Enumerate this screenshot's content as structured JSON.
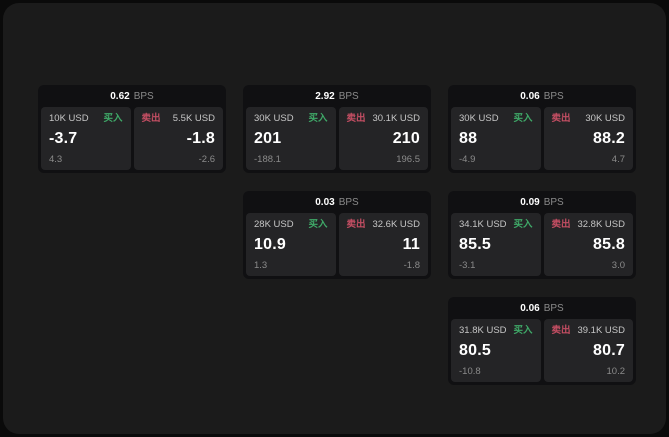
{
  "labels": {
    "bps": "BPS",
    "buy": "买入",
    "sell": "卖出"
  },
  "colors": {
    "page_bg": "#0a0a0a",
    "panel_bg": "#1b1b1b",
    "card_bg": "#101012",
    "tile_bg": "#242426",
    "buy_green": "#3fa968",
    "sell_red": "#c44e63",
    "text_primary": "#ffffff",
    "text_secondary": "#c6c6c6",
    "text_muted": "#8b8b8b"
  },
  "cards": [
    {
      "bps": "0.62",
      "buy": {
        "amount": "10K USD",
        "price": "-3.7",
        "delta": "4.3"
      },
      "sell": {
        "amount": "5.5K USD",
        "price": "-1.8",
        "delta": "-2.6"
      }
    },
    {
      "bps": "2.92",
      "buy": {
        "amount": "30K USD",
        "price": "201",
        "delta": "-188.1"
      },
      "sell": {
        "amount": "30.1K USD",
        "price": "210",
        "delta": "196.5"
      }
    },
    {
      "bps": "0.06",
      "buy": {
        "amount": "30K USD",
        "price": "88",
        "delta": "-4.9"
      },
      "sell": {
        "amount": "30K USD",
        "price": "88.2",
        "delta": "4.7"
      }
    },
    {
      "bps": "0.03",
      "buy": {
        "amount": "28K USD",
        "price": "10.9",
        "delta": "1.3"
      },
      "sell": {
        "amount": "32.6K USD",
        "price": "11",
        "delta": "-1.8"
      }
    },
    {
      "bps": "0.09",
      "buy": {
        "amount": "34.1K USD",
        "price": "85.5",
        "delta": "-3.1"
      },
      "sell": {
        "amount": "32.8K USD",
        "price": "85.8",
        "delta": "3.0"
      }
    },
    {
      "bps": "0.06",
      "buy": {
        "amount": "31.8K USD",
        "price": "80.5",
        "delta": "-10.8"
      },
      "sell": {
        "amount": "39.1K USD",
        "price": "80.7",
        "delta": "10.2"
      }
    }
  ]
}
